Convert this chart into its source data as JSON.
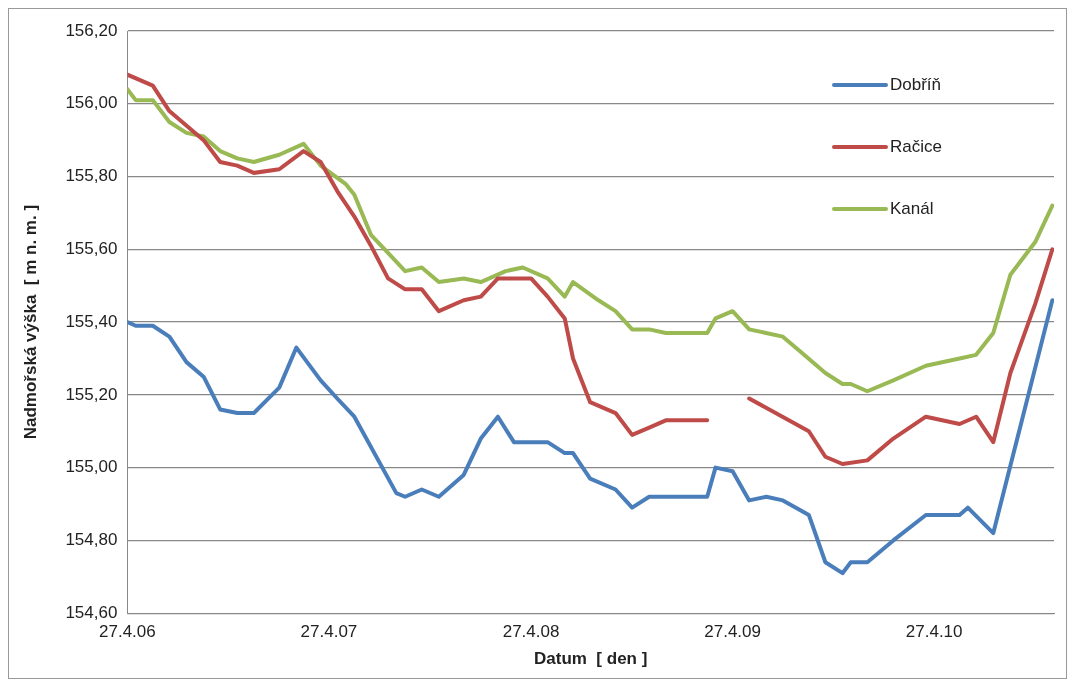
{
  "chart_data": {
    "type": "line",
    "xlabel": "Datum  [ den ]",
    "ylabel": "Nadmořská výška  [ m n. m. ]",
    "xlim": [
      "2006-04-27",
      "2010-11-30"
    ],
    "xticks": [
      {
        "value": "2006-04-27",
        "label": "27.4.06"
      },
      {
        "value": "2007-04-27",
        "label": "27.4.07"
      },
      {
        "value": "2008-04-27",
        "label": "27.4.08"
      },
      {
        "value": "2009-04-27",
        "label": "27.4.09"
      },
      {
        "value": "2010-04-27",
        "label": "27.4.10"
      }
    ],
    "ylim": [
      154.6,
      156.2
    ],
    "yticks": [
      {
        "value": 154.6,
        "label": "154,60"
      },
      {
        "value": 154.8,
        "label": "154,80"
      },
      {
        "value": 155.0,
        "label": "155,00"
      },
      {
        "value": 155.2,
        "label": "155,20"
      },
      {
        "value": 155.4,
        "label": "155,40"
      },
      {
        "value": 155.6,
        "label": "155,60"
      },
      {
        "value": 155.8,
        "label": "155,80"
      },
      {
        "value": 156.0,
        "label": "156,00"
      },
      {
        "value": 156.2,
        "label": "156,20"
      }
    ],
    "grid": "y",
    "legend": "top right",
    "marker": "none",
    "line_style": "solid",
    "series": [
      {
        "name": "Dobříň",
        "color": "#4a7ebb",
        "x": [
          "2006-04-27",
          "2006-05-12",
          "2006-06-12",
          "2006-07-12",
          "2006-08-12",
          "2006-09-12",
          "2006-10-12",
          "2006-11-12",
          "2006-12-12",
          "2007-01-27",
          "2007-02-27",
          "2007-04-12",
          "2007-05-12",
          "2007-06-12",
          "2007-08-27",
          "2007-09-12",
          "2007-10-12",
          "2007-11-12",
          "2007-12-27",
          "2008-01-27",
          "2008-02-27",
          "2008-03-27",
          "2008-04-27",
          "2008-05-27",
          "2008-06-27",
          "2008-07-12",
          "2008-08-12",
          "2008-09-27",
          "2008-10-27",
          "2008-11-27",
          "2009-03-12",
          "2009-03-27",
          "2009-04-27",
          "2009-05-27",
          "2009-06-27",
          "2009-07-27",
          "2009-09-12",
          "2009-10-12",
          "2009-11-12",
          "2009-11-27",
          "2009-12-27",
          "2010-02-12",
          "2010-04-12",
          "2010-06-12",
          "2010-06-27",
          "2010-08-12",
          "2010-11-27"
        ],
        "values": [
          155.4,
          155.39,
          155.39,
          155.36,
          155.29,
          155.25,
          155.16,
          155.15,
          155.15,
          155.22,
          155.33,
          155.24,
          155.19,
          155.14,
          154.93,
          154.92,
          154.94,
          154.92,
          154.98,
          155.08,
          155.14,
          155.07,
          155.07,
          155.07,
          155.04,
          155.04,
          154.97,
          154.94,
          154.89,
          154.92,
          154.92,
          155.0,
          154.99,
          154.91,
          154.92,
          154.91,
          154.87,
          154.74,
          154.71,
          154.74,
          154.74,
          154.8,
          154.87,
          154.87,
          154.89,
          154.82,
          155.46
        ]
      },
      {
        "name": "Račice",
        "color": "#be4b48",
        "x": [
          "2006-04-27",
          "2006-06-12",
          "2006-07-12",
          "2006-09-12",
          "2006-10-12",
          "2006-11-12",
          "2006-12-12",
          "2007-01-27",
          "2007-03-12",
          "2007-04-12",
          "2007-05-12",
          "2007-06-12",
          "2007-07-12",
          "2007-08-12",
          "2007-09-12",
          "2007-10-12",
          "2007-11-12",
          "2007-12-27",
          "2008-01-27",
          "2008-02-27",
          "2008-04-27",
          "2008-05-27",
          "2008-06-27",
          "2008-07-12",
          "2008-08-12",
          "2008-09-27",
          "2008-10-27",
          "2008-11-27",
          "2008-12-27",
          "2009-03-12",
          "2009-04-12",
          "2009-05-27",
          "2009-09-12",
          "2009-10-12",
          "2009-11-12",
          "2009-12-27",
          "2010-02-12",
          "2010-04-12",
          "2010-06-12",
          "2010-07-12",
          "2010-08-12",
          "2010-09-12",
          "2010-10-27",
          "2010-11-27"
        ],
        "values": [
          156.08,
          156.05,
          155.98,
          155.9,
          155.84,
          155.83,
          155.81,
          155.82,
          155.87,
          155.84,
          155.76,
          155.69,
          155.61,
          155.52,
          155.49,
          155.49,
          155.43,
          155.46,
          155.47,
          155.52,
          155.52,
          155.47,
          155.41,
          155.3,
          155.18,
          155.15,
          155.09,
          155.11,
          155.13,
          155.13,
          null,
          155.19,
          155.1,
          155.03,
          155.01,
          155.02,
          155.08,
          155.14,
          155.12,
          155.14,
          155.07,
          155.26,
          155.45,
          155.6
        ]
      },
      {
        "name": "Kanál",
        "color": "#98b954",
        "x": [
          "2006-04-27",
          "2006-05-12",
          "2006-06-12",
          "2006-07-12",
          "2006-08-12",
          "2006-09-12",
          "2006-10-12",
          "2006-11-12",
          "2006-12-12",
          "2007-01-27",
          "2007-03-12",
          "2007-04-12",
          "2007-05-27",
          "2007-06-12",
          "2007-07-12",
          "2007-08-12",
          "2007-09-12",
          "2007-10-12",
          "2007-11-12",
          "2007-12-27",
          "2008-01-27",
          "2008-03-12",
          "2008-04-12",
          "2008-05-27",
          "2008-06-27",
          "2008-07-12",
          "2008-08-27",
          "2008-09-27",
          "2008-10-27",
          "2008-11-27",
          "2008-12-27",
          "2009-03-12",
          "2009-03-27",
          "2009-04-27",
          "2009-05-27",
          "2009-07-27",
          "2009-08-27",
          "2009-10-12",
          "2009-11-12",
          "2009-11-27",
          "2009-12-27",
          "2010-02-12",
          "2010-04-12",
          "2010-06-12",
          "2010-07-12",
          "2010-08-12",
          "2010-09-12",
          "2010-10-27",
          "2010-11-27"
        ],
        "values": [
          156.04,
          156.01,
          156.01,
          155.95,
          155.92,
          155.91,
          155.87,
          155.85,
          155.84,
          155.86,
          155.89,
          155.83,
          155.78,
          155.75,
          155.64,
          155.59,
          155.54,
          155.55,
          155.51,
          155.52,
          155.51,
          155.54,
          155.55,
          155.52,
          155.47,
          155.51,
          155.46,
          155.43,
          155.38,
          155.38,
          155.37,
          155.37,
          155.41,
          155.43,
          155.38,
          155.36,
          155.32,
          155.26,
          155.23,
          155.23,
          155.21,
          155.24,
          155.28,
          155.3,
          155.31,
          155.37,
          155.53,
          155.62,
          155.72
        ]
      }
    ]
  }
}
